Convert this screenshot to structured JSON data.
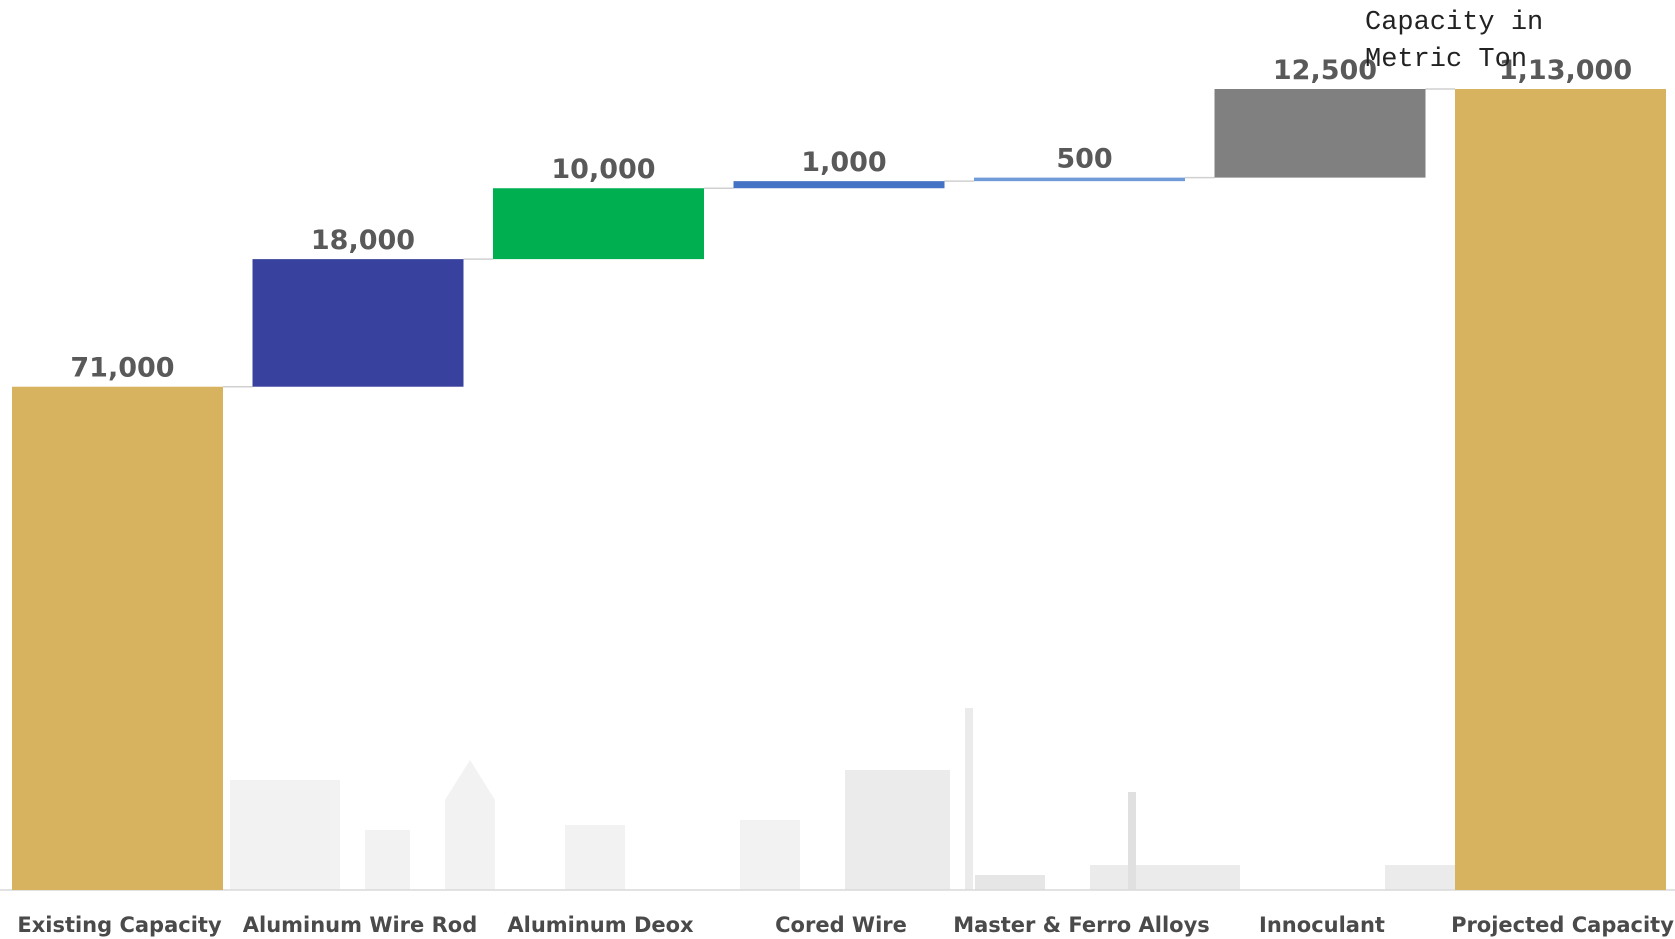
{
  "chart_data": {
    "type": "waterfall",
    "title": "Capacity in Metric Ton",
    "categories": [
      "Existing Capacity",
      "Aluminum Wire Rod",
      "Aluminum Deox",
      "Cored Wire",
      "Master & Ferro Alloys",
      "Innoculant",
      "Projected Capacity"
    ],
    "values": [
      71000,
      18000,
      10000,
      1000,
      500,
      12500,
      113000
    ],
    "value_labels": [
      "71,000",
      "18,000",
      "10,000",
      "1,000",
      "500",
      "12,500",
      "1,13,000"
    ],
    "measures": [
      "total",
      "relative",
      "relative",
      "relative",
      "relative",
      "relative",
      "total"
    ],
    "colors": [
      "#d8b35f",
      "#38419d",
      "#00b050",
      "#4472c4",
      "#6f9bd8",
      "#808080",
      "#d8b35f"
    ]
  }
}
